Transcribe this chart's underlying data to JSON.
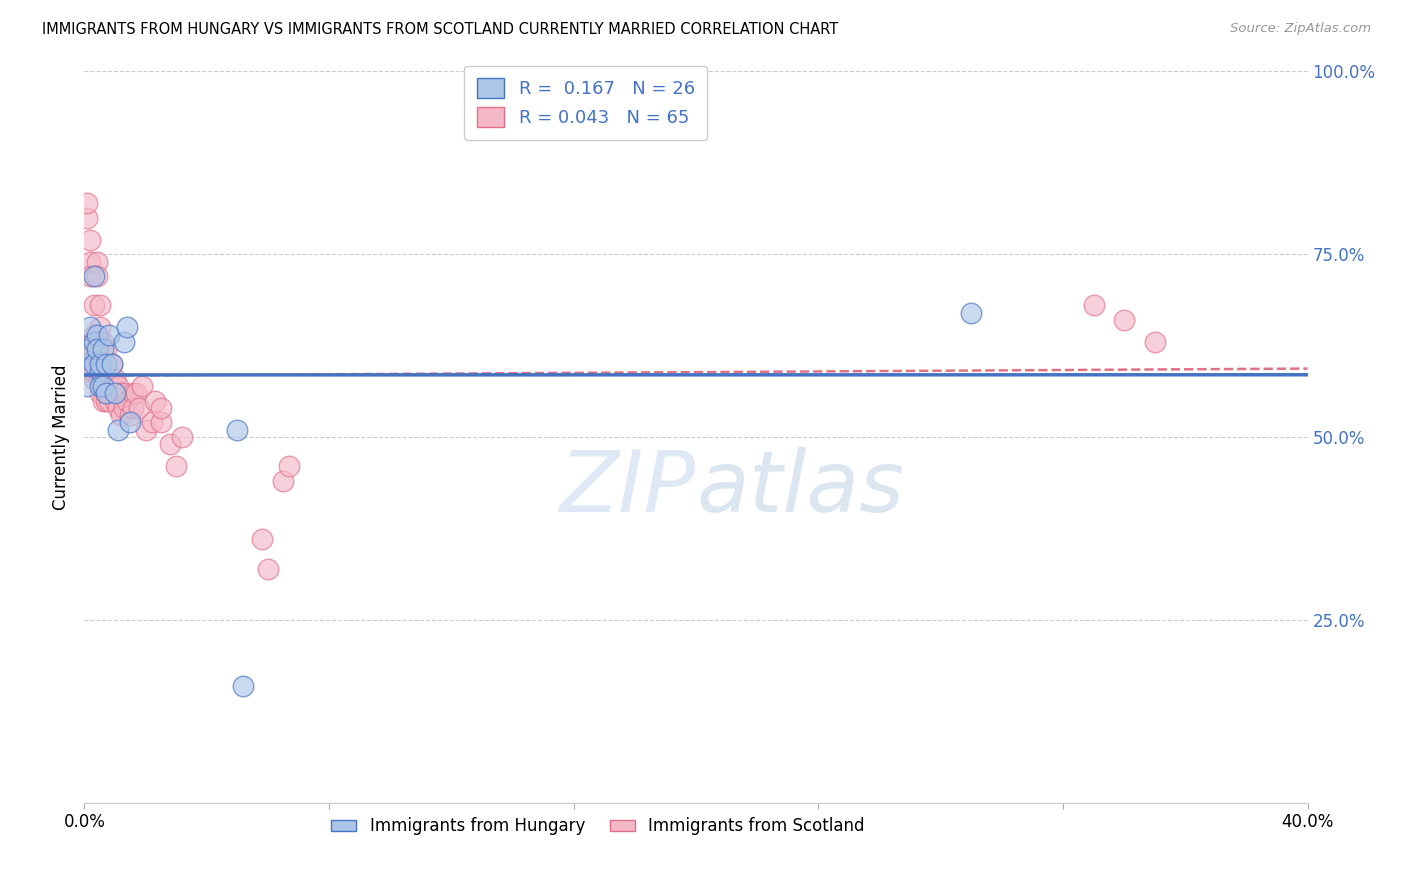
{
  "title": "IMMIGRANTS FROM HUNGARY VS IMMIGRANTS FROM SCOTLAND CURRENTLY MARRIED CORRELATION CHART",
  "source": "Source: ZipAtlas.com",
  "ylabel": "Currently Married",
  "xlim": [
    0.0,
    0.4
  ],
  "ylim": [
    0.0,
    1.0
  ],
  "ytick_positions": [
    0.0,
    0.25,
    0.5,
    0.75,
    1.0
  ],
  "ytick_labels": [
    "",
    "25.0%",
    "50.0%",
    "75.0%",
    "100.0%"
  ],
  "xtick_positions": [
    0.0,
    0.08,
    0.16,
    0.24,
    0.32,
    0.4
  ],
  "xtick_labels": [
    "0.0%",
    "",
    "",
    "",
    "",
    "40.0%"
  ],
  "R_hungary": 0.167,
  "N_hungary": 26,
  "R_scotland": 0.043,
  "N_scotland": 65,
  "color_hungary": "#adc6e8",
  "color_scotland": "#f5b8c8",
  "line_color_hungary": "#4472c4",
  "line_color_scotland": "#e07088",
  "watermark_zip": "ZIP",
  "watermark_atlas": "atlas",
  "hungary_x": [
    0.001,
    0.001,
    0.002,
    0.002,
    0.003,
    0.003,
    0.003,
    0.004,
    0.004,
    0.005,
    0.005,
    0.005,
    0.006,
    0.006,
    0.007,
    0.007,
    0.008,
    0.009,
    0.01,
    0.011,
    0.013,
    0.014,
    0.015,
    0.05,
    0.29,
    0.052
  ],
  "hungary_y": [
    0.57,
    0.6,
    0.62,
    0.65,
    0.6,
    0.63,
    0.72,
    0.64,
    0.62,
    0.59,
    0.57,
    0.6,
    0.57,
    0.62,
    0.56,
    0.6,
    0.64,
    0.6,
    0.56,
    0.51,
    0.63,
    0.65,
    0.52,
    0.51,
    0.67,
    0.16
  ],
  "scotland_x": [
    0.001,
    0.001,
    0.001,
    0.001,
    0.002,
    0.002,
    0.002,
    0.002,
    0.003,
    0.003,
    0.003,
    0.003,
    0.003,
    0.004,
    0.004,
    0.004,
    0.004,
    0.005,
    0.005,
    0.005,
    0.005,
    0.005,
    0.006,
    0.006,
    0.006,
    0.006,
    0.007,
    0.007,
    0.007,
    0.007,
    0.008,
    0.008,
    0.008,
    0.009,
    0.009,
    0.01,
    0.01,
    0.011,
    0.011,
    0.012,
    0.012,
    0.013,
    0.013,
    0.014,
    0.015,
    0.016,
    0.016,
    0.017,
    0.018,
    0.019,
    0.02,
    0.022,
    0.023,
    0.025,
    0.025,
    0.028,
    0.03,
    0.032,
    0.058,
    0.06,
    0.065,
    0.067,
    0.33,
    0.34,
    0.35
  ],
  "scotland_y": [
    0.8,
    0.82,
    0.59,
    0.62,
    0.77,
    0.74,
    0.72,
    0.59,
    0.68,
    0.64,
    0.62,
    0.58,
    0.59,
    0.74,
    0.72,
    0.63,
    0.59,
    0.68,
    0.65,
    0.63,
    0.58,
    0.56,
    0.59,
    0.63,
    0.58,
    0.55,
    0.62,
    0.59,
    0.57,
    0.55,
    0.58,
    0.56,
    0.55,
    0.6,
    0.57,
    0.58,
    0.55,
    0.57,
    0.54,
    0.56,
    0.53,
    0.56,
    0.54,
    0.55,
    0.53,
    0.56,
    0.54,
    0.56,
    0.54,
    0.57,
    0.51,
    0.52,
    0.55,
    0.52,
    0.54,
    0.49,
    0.46,
    0.5,
    0.36,
    0.32,
    0.44,
    0.46,
    0.68,
    0.66,
    0.63
  ]
}
